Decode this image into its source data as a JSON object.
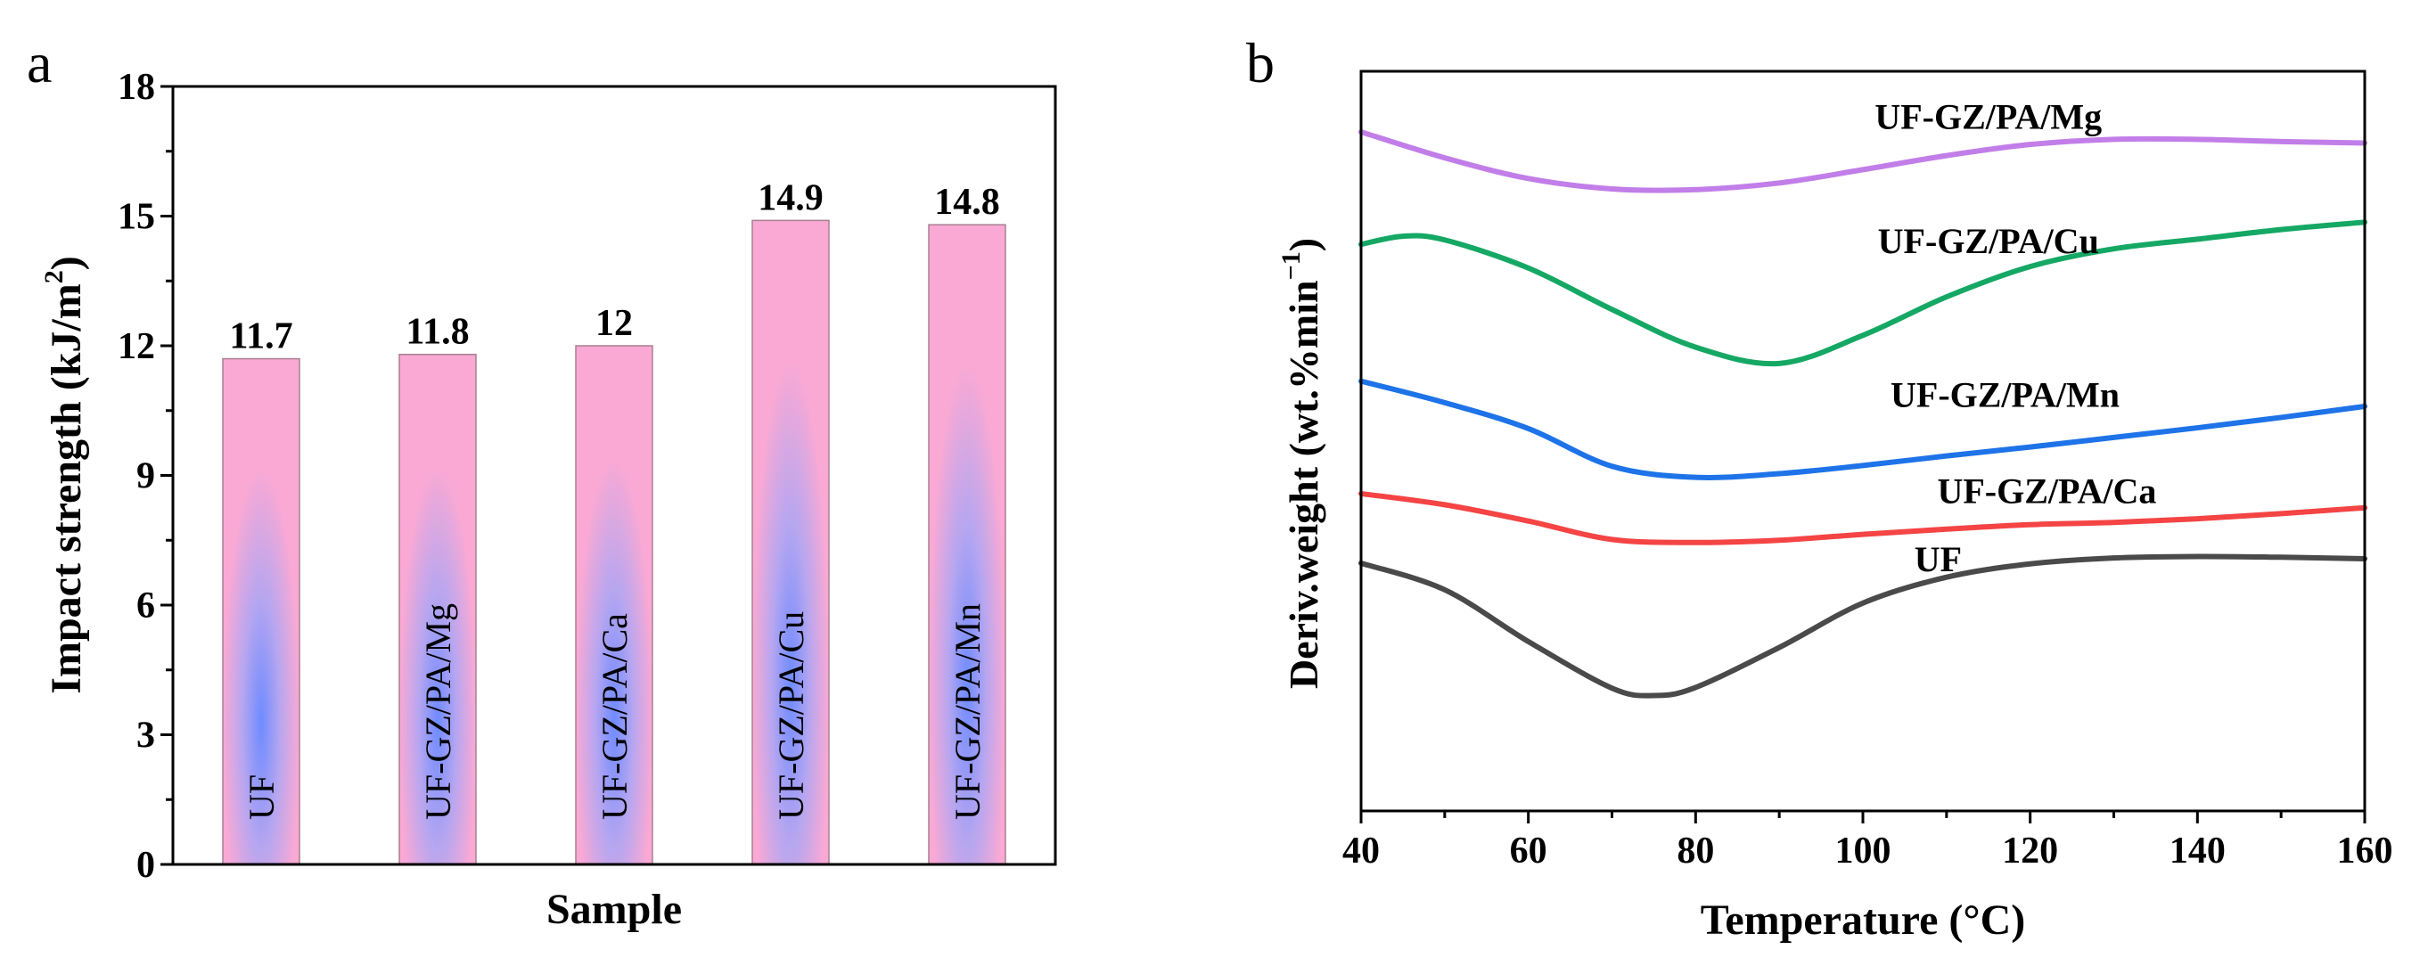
{
  "panels": {
    "a": "a",
    "b": "b"
  },
  "chart_data": [
    {
      "type": "bar",
      "panel": "a",
      "xlabel": "Sample",
      "ylabel": "Impact strength (kJ/m2)",
      "ylabel_main": "Impact strength (kJ/m",
      "ylabel_sup": "2",
      "ylabel_close": ")",
      "ylim": [
        0,
        18
      ],
      "yticks": [
        0,
        3,
        6,
        9,
        12,
        15,
        18
      ],
      "categories": [
        "UF",
        "UF-GZ/PA/Mg",
        "UF-GZ/PA/Ca",
        "UF-GZ/PA/Cu",
        "UF-GZ/PA/Mn"
      ],
      "values": [
        11.7,
        11.8,
        12.0,
        14.9,
        14.8
      ],
      "data_labels": [
        "11.7",
        "11.8",
        "12",
        "14.9",
        "14.8"
      ],
      "colors": {
        "bar_fill": "#f9a9d4",
        "bar_glow": "#6e8bff"
      }
    },
    {
      "type": "line",
      "panel": "b",
      "xlabel": "Temperature (°C)",
      "ylabel": "Deriv.weight (wt.%min−1)",
      "ylabel_main": "Deriv.weight (wt.%min",
      "ylabel_sup": "−1",
      "ylabel_close": ")",
      "xlim": [
        40,
        160
      ],
      "xticks": [
        40,
        60,
        80,
        100,
        120,
        140,
        160
      ],
      "ylim": [
        0,
        100
      ],
      "y_ticks_labeled": false,
      "series": [
        {
          "name": "UF-GZ/PA/Mg",
          "color": "#c27ee8",
          "x": [
            40,
            50,
            60,
            70,
            80,
            90,
            100,
            110,
            120,
            130,
            140,
            150,
            160
          ],
          "y": [
            91.8,
            88.3,
            85.5,
            84.1,
            84.0,
            84.9,
            86.7,
            88.6,
            90.1,
            90.8,
            90.8,
            90.5,
            90.3
          ]
        },
        {
          "name": "UF-GZ/PA/Cu",
          "color": "#15a865",
          "x": [
            40,
            45,
            50,
            60,
            70,
            80,
            90,
            100,
            110,
            120,
            130,
            140,
            150,
            160
          ],
          "y": [
            76.6,
            77.7,
            77.2,
            73.4,
            67.8,
            62.7,
            60.5,
            64.3,
            69.5,
            73.6,
            76.0,
            77.3,
            78.6,
            79.6
          ]
        },
        {
          "name": "UF-GZ/PA/Mn",
          "color": "#1e73e8",
          "x": [
            40,
            50,
            60,
            70,
            80,
            90,
            100,
            110,
            120,
            130,
            140,
            150,
            160
          ],
          "y": [
            58.1,
            55.2,
            51.7,
            46.6,
            45.1,
            45.6,
            46.7,
            48.0,
            49.2,
            50.5,
            51.8,
            53.2,
            54.7
          ]
        },
        {
          "name": "UF-GZ/PA/Ca",
          "color": "#f44444",
          "x": [
            40,
            50,
            60,
            70,
            80,
            90,
            100,
            110,
            120,
            130,
            140,
            150,
            160
          ],
          "y": [
            42.9,
            41.4,
            39.2,
            36.7,
            36.3,
            36.6,
            37.4,
            38.1,
            38.7,
            39.0,
            39.5,
            40.2,
            41.0
          ]
        },
        {
          "name": "UF",
          "color": "#4a4a4a",
          "x": [
            40,
            50,
            60,
            70,
            75,
            80,
            90,
            100,
            110,
            120,
            130,
            140,
            150,
            160
          ],
          "y": [
            33.5,
            29.9,
            22.9,
            16.6,
            15.6,
            16.7,
            22.1,
            28.1,
            31.6,
            33.4,
            34.2,
            34.4,
            34.3,
            34.1
          ]
        }
      ],
      "annotations": [
        {
          "text": "UF-GZ/PA/Mg",
          "x": 115,
          "y": 93.9
        },
        {
          "text": "UF-GZ/PA/Cu",
          "x": 115,
          "y": 77.1
        },
        {
          "text": "UF-GZ/PA/Mn",
          "x": 117,
          "y": 56.3
        },
        {
          "text": "UF-GZ/PA/Ca",
          "x": 122,
          "y": 43.3
        },
        {
          "text": "UF",
          "x": 109,
          "y": 34.1
        }
      ]
    }
  ]
}
